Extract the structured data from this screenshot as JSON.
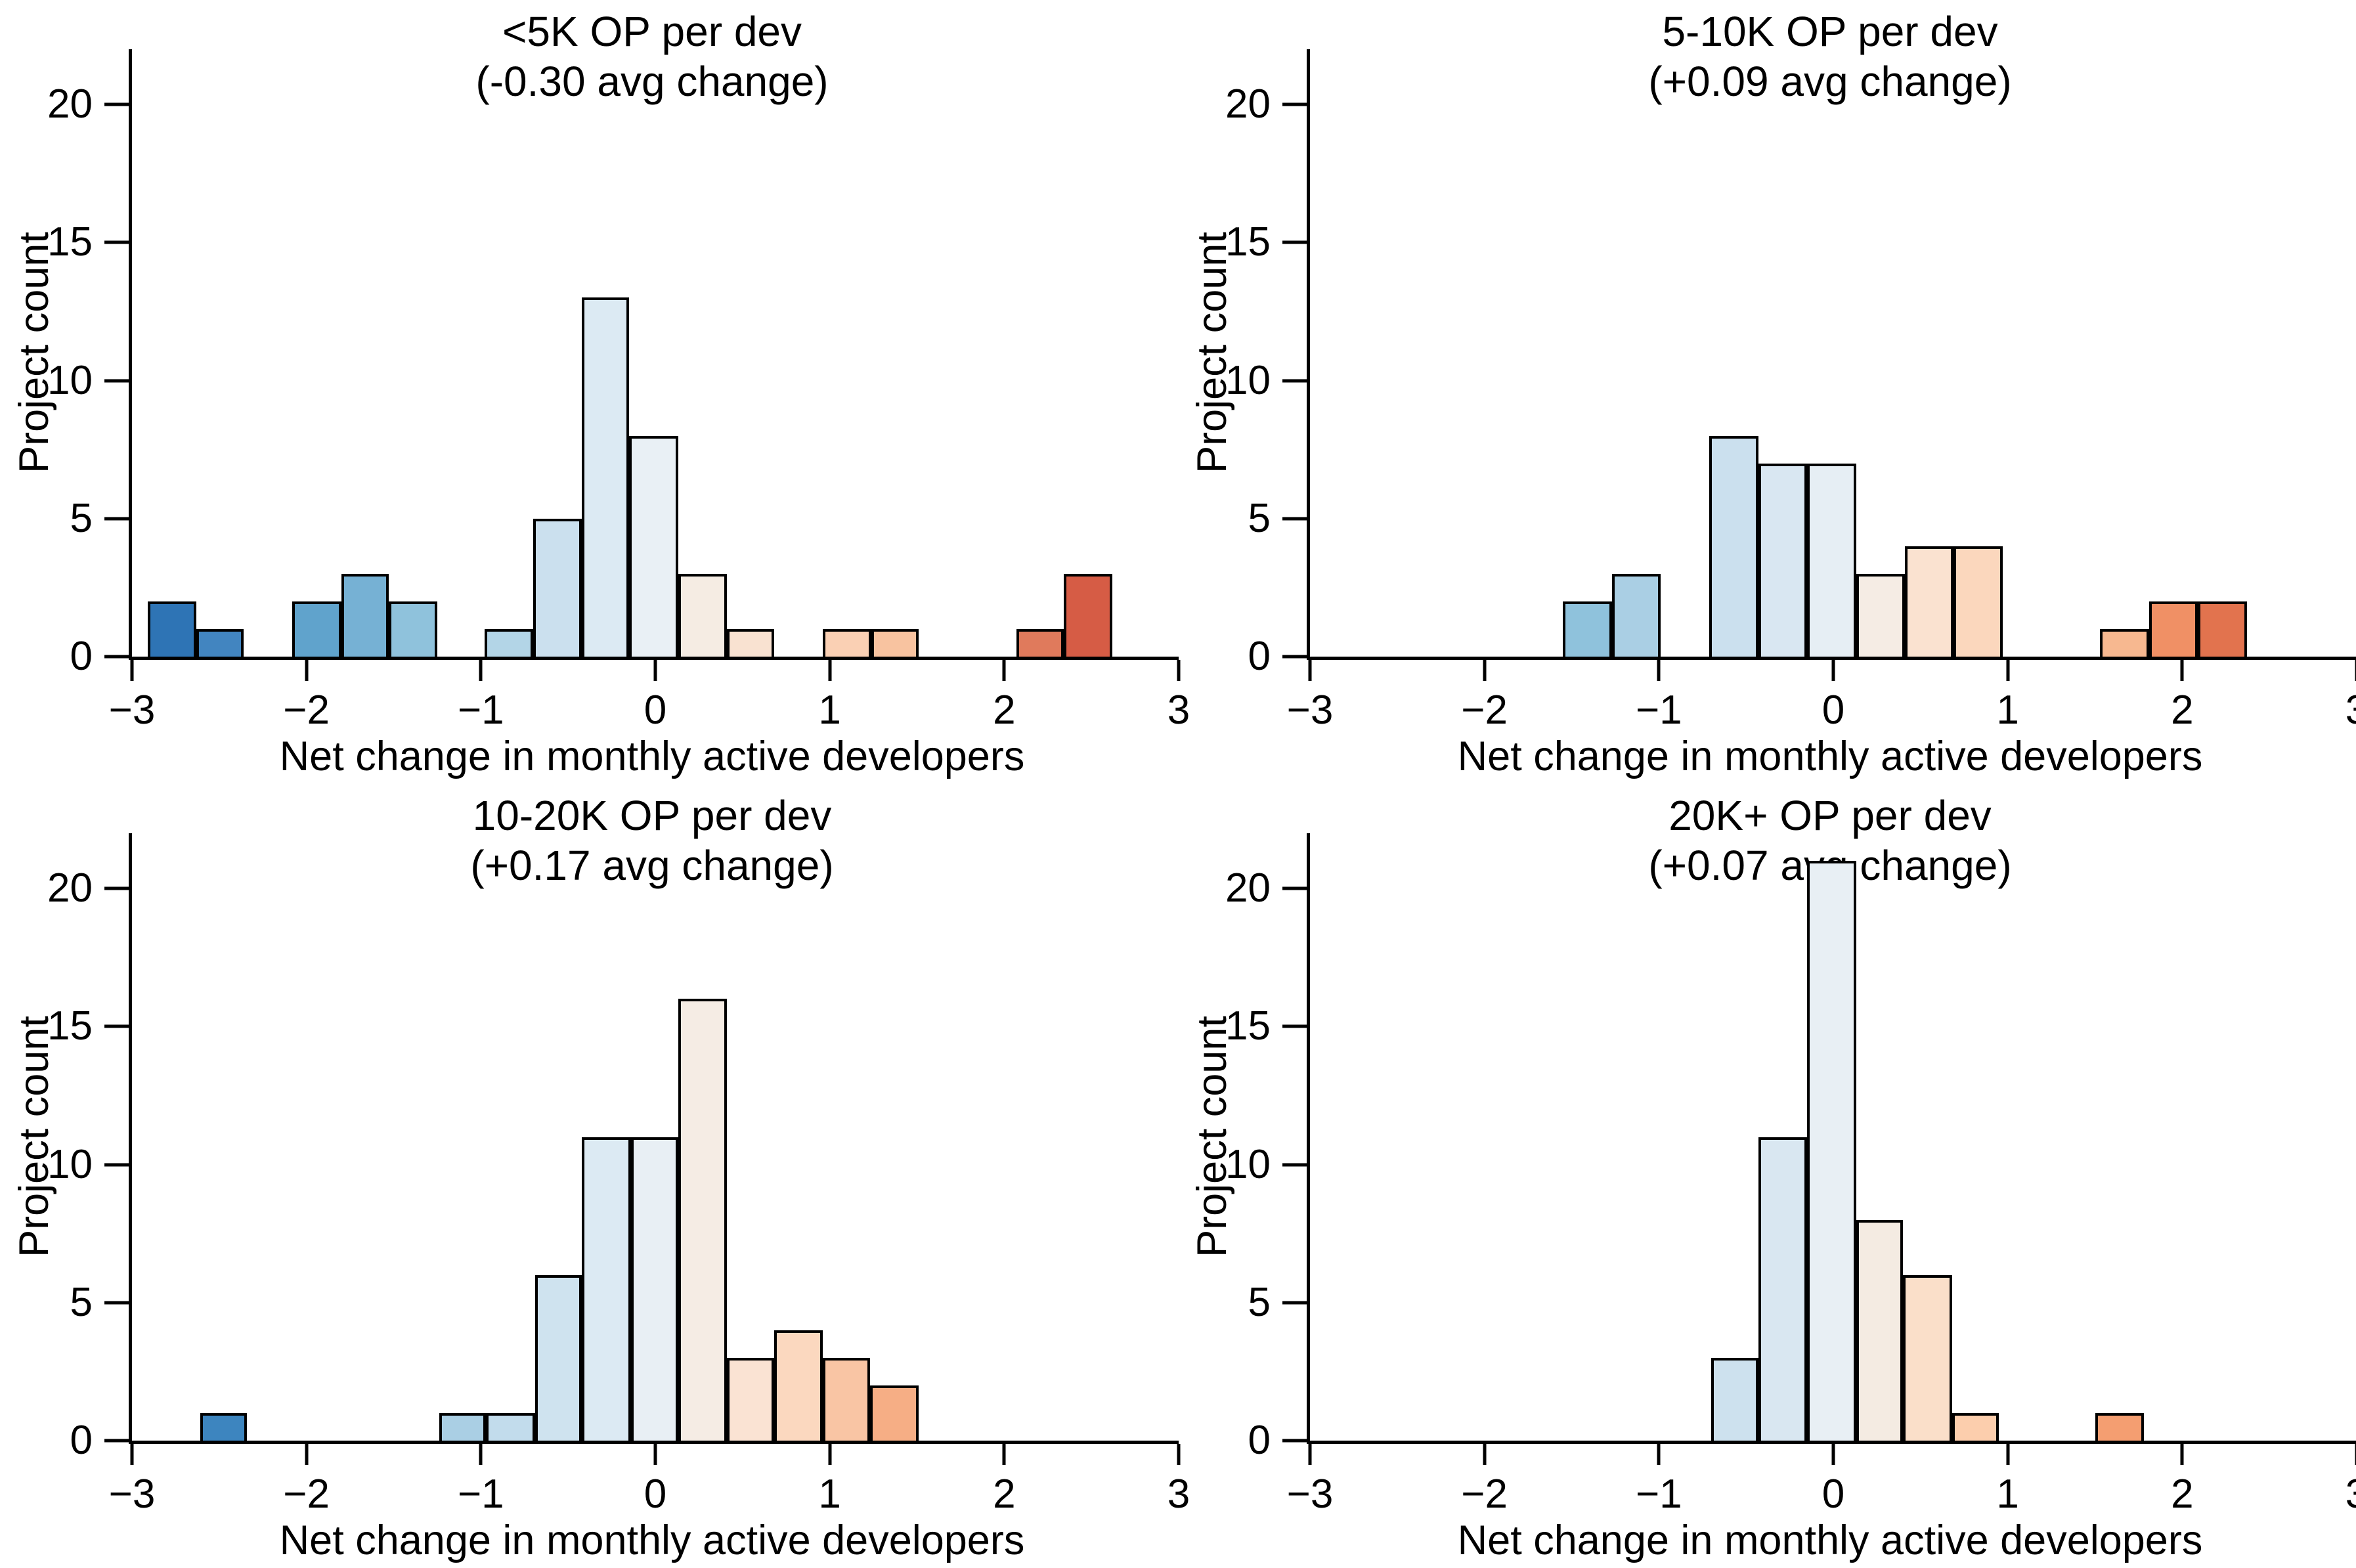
{
  "page": {
    "background": "#ffffff",
    "text_color": "#000000"
  },
  "axes": {
    "xlim": [
      -3,
      3
    ],
    "ylim": [
      0,
      22
    ],
    "x_ticks": [
      {
        "value": -3,
        "label": "−3"
      },
      {
        "value": -2,
        "label": "−2"
      },
      {
        "value": -1,
        "label": "−1"
      },
      {
        "value": 0,
        "label": "0"
      },
      {
        "value": 1,
        "label": "1"
      },
      {
        "value": 2,
        "label": "2"
      },
      {
        "value": 3,
        "label": "3"
      }
    ],
    "y_ticks": [
      {
        "value": 0,
        "label": "0"
      },
      {
        "value": 5,
        "label": "5"
      },
      {
        "value": 10,
        "label": "10"
      },
      {
        "value": 15,
        "label": "15"
      },
      {
        "value": 20,
        "label": "20"
      }
    ],
    "bar_edge_color": "#000000",
    "grid": "off",
    "legend": "none"
  },
  "chart_data": [
    {
      "type": "bar",
      "title_line1": "<5K OP per dev",
      "title_line2": "(-0.30 avg change)",
      "xlabel": "Net change in monthly active developers",
      "ylabel": "Project count",
      "bins": [
        {
          "x0": -2.91,
          "x1": -2.63,
          "count": 2,
          "color": "#2e74b5"
        },
        {
          "x0": -2.63,
          "x1": -2.36,
          "count": 1,
          "color": "#4285c0"
        },
        {
          "x0": -2.08,
          "x1": -1.8,
          "count": 2,
          "color": "#60a3cc"
        },
        {
          "x0": -1.8,
          "x1": -1.53,
          "count": 3,
          "color": "#76b1d4"
        },
        {
          "x0": -1.53,
          "x1": -1.25,
          "count": 2,
          "color": "#8fc2dc"
        },
        {
          "x0": -0.98,
          "x1": -0.7,
          "count": 1,
          "color": "#b3d5e7"
        },
        {
          "x0": -0.7,
          "x1": -0.42,
          "count": 5,
          "color": "#cbe0ee"
        },
        {
          "x0": -0.42,
          "x1": -0.15,
          "count": 13,
          "color": "#dceaf3"
        },
        {
          "x0": -0.15,
          "x1": 0.13,
          "count": 8,
          "color": "#e9f0f5"
        },
        {
          "x0": 0.13,
          "x1": 0.41,
          "count": 3,
          "color": "#f5ece3"
        },
        {
          "x0": 0.41,
          "x1": 0.68,
          "count": 1,
          "color": "#f9e2d1"
        },
        {
          "x0": 0.96,
          "x1": 1.24,
          "count": 1,
          "color": "#fad0b4"
        },
        {
          "x0": 1.24,
          "x1": 1.51,
          "count": 1,
          "color": "#f8c3a0"
        },
        {
          "x0": 2.07,
          "x1": 2.34,
          "count": 1,
          "color": "#e07a5c"
        },
        {
          "x0": 2.34,
          "x1": 2.62,
          "count": 3,
          "color": "#d65c45"
        }
      ]
    },
    {
      "type": "bar",
      "title_line1": "5-10K OP per dev",
      "title_line2": "(+0.09 avg change)",
      "xlabel": "Net change in monthly active developers",
      "ylabel": "Project count",
      "bins": [
        {
          "x0": -1.55,
          "x1": -1.27,
          "count": 2,
          "color": "#8fc2dc"
        },
        {
          "x0": -1.27,
          "x1": -0.99,
          "count": 3,
          "color": "#aacfe4"
        },
        {
          "x0": -0.71,
          "x1": -0.43,
          "count": 8,
          "color": "#cbe0ee"
        },
        {
          "x0": -0.43,
          "x1": -0.15,
          "count": 7,
          "color": "#d9e7f2"
        },
        {
          "x0": -0.15,
          "x1": 0.13,
          "count": 7,
          "color": "#e6eef4"
        },
        {
          "x0": 0.13,
          "x1": 0.41,
          "count": 3,
          "color": "#f5ece4"
        },
        {
          "x0": 0.41,
          "x1": 0.69,
          "count": 4,
          "color": "#fae2d0"
        },
        {
          "x0": 0.69,
          "x1": 0.97,
          "count": 4,
          "color": "#fbd7bd"
        },
        {
          "x0": 1.53,
          "x1": 1.81,
          "count": 1,
          "color": "#f7b890"
        },
        {
          "x0": 1.81,
          "x1": 2.09,
          "count": 2,
          "color": "#f09065"
        },
        {
          "x0": 2.09,
          "x1": 2.37,
          "count": 2,
          "color": "#e2734e"
        }
      ]
    },
    {
      "type": "bar",
      "title_line1": "10-20K OP per dev",
      "title_line2": "(+0.17 avg change)",
      "xlabel": "Net change in monthly active developers",
      "ylabel": "Project count",
      "bins": [
        {
          "x0": -2.61,
          "x1": -2.34,
          "count": 1,
          "color": "#3d85bf"
        },
        {
          "x0": -1.24,
          "x1": -0.97,
          "count": 1,
          "color": "#aacfe4"
        },
        {
          "x0": -0.97,
          "x1": -0.69,
          "count": 1,
          "color": "#c2dcec"
        },
        {
          "x0": -0.69,
          "x1": -0.42,
          "count": 6,
          "color": "#cfe3ef"
        },
        {
          "x0": -0.42,
          "x1": -0.14,
          "count": 11,
          "color": "#dceaf3"
        },
        {
          "x0": -0.14,
          "x1": 0.13,
          "count": 11,
          "color": "#e8eff4"
        },
        {
          "x0": 0.13,
          "x1": 0.41,
          "count": 16,
          "color": "#f5ece4"
        },
        {
          "x0": 0.41,
          "x1": 0.68,
          "count": 3,
          "color": "#fae3d3"
        },
        {
          "x0": 0.68,
          "x1": 0.96,
          "count": 4,
          "color": "#fbd8bf"
        },
        {
          "x0": 0.96,
          "x1": 1.23,
          "count": 3,
          "color": "#f9c5a4"
        },
        {
          "x0": 1.23,
          "x1": 1.51,
          "count": 2,
          "color": "#f6ae85"
        }
      ]
    },
    {
      "type": "bar",
      "title_line1": "20K+ OP per dev",
      "title_line2": "(+0.07 avg change)",
      "xlabel": "Net change in monthly active developers",
      "ylabel": "Project count",
      "bins": [
        {
          "x0": -0.7,
          "x1": -0.43,
          "count": 3,
          "color": "#cde1ee"
        },
        {
          "x0": -0.43,
          "x1": -0.15,
          "count": 11,
          "color": "#d9e7f1"
        },
        {
          "x0": -0.15,
          "x1": 0.13,
          "count": 21,
          "color": "#e8eff4"
        },
        {
          "x0": 0.13,
          "x1": 0.4,
          "count": 8,
          "color": "#f4ebe2"
        },
        {
          "x0": 0.4,
          "x1": 0.68,
          "count": 6,
          "color": "#fadfc9"
        },
        {
          "x0": 0.68,
          "x1": 0.95,
          "count": 1,
          "color": "#fccead"
        },
        {
          "x0": 1.5,
          "x1": 1.78,
          "count": 1,
          "color": "#f49e71"
        }
      ]
    }
  ]
}
